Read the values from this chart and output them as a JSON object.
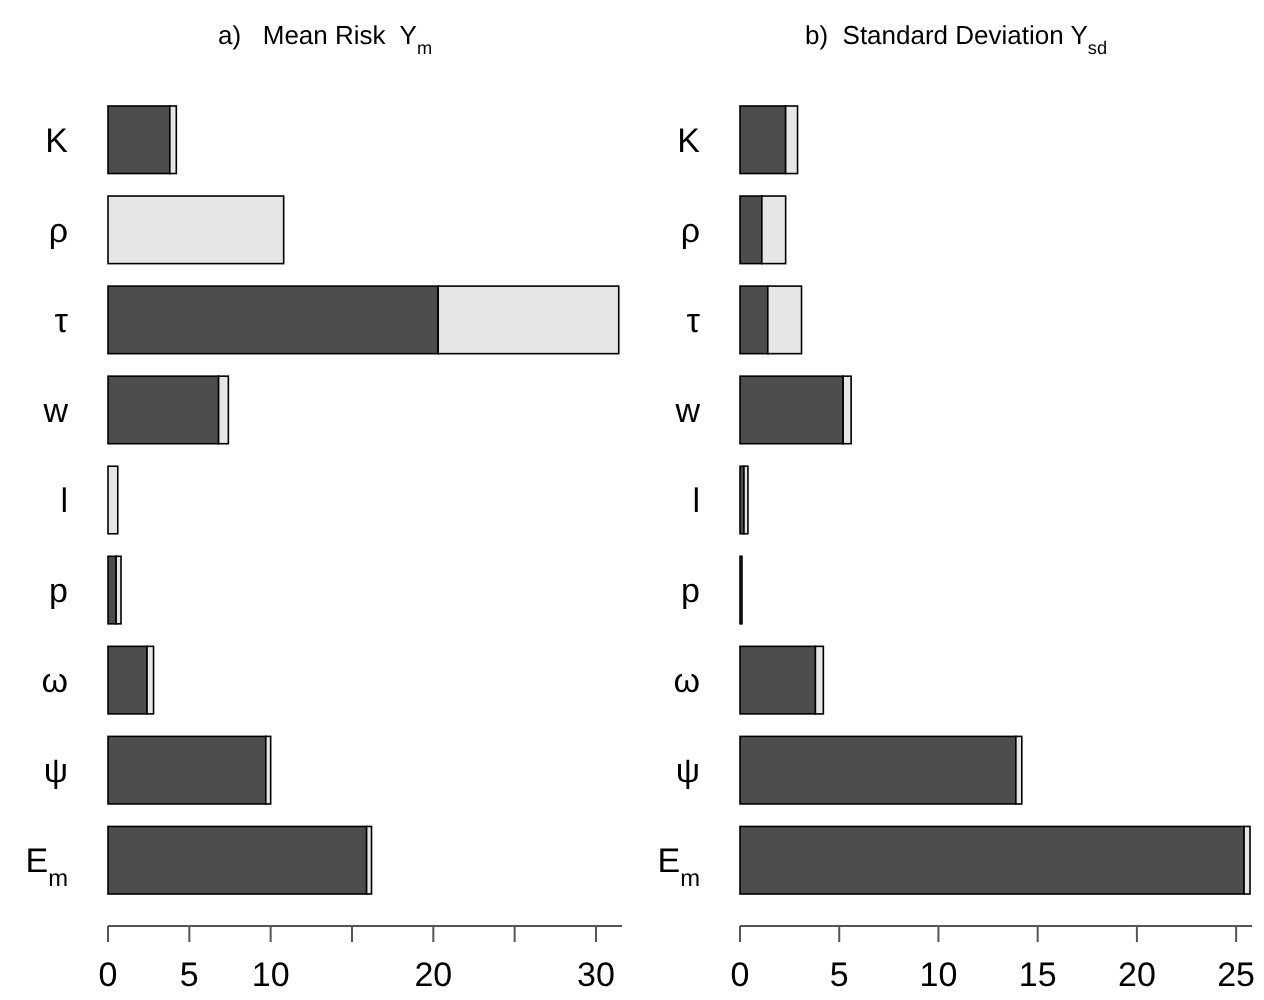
{
  "chart_data": [
    {
      "type": "bar",
      "orientation": "horizontal",
      "stacked": true,
      "title": "a)   Mean Risk  Y$_{m}$",
      "categories": [
        "K",
        "ρ",
        "τ",
        "w",
        "l",
        "p",
        "ω",
        "ψ",
        "E$_{m}$"
      ],
      "series": [
        {
          "color": "#4d4d4d",
          "values": [
            3.8,
            0,
            20.3,
            6.8,
            0,
            0.5,
            2.4,
            9.7,
            15.9
          ]
        },
        {
          "color": "#e6e6e6",
          "values": [
            0.4,
            10.8,
            11.1,
            0.6,
            0.6,
            0.3,
            0.4,
            0.3,
            0.3
          ]
        }
      ],
      "xlim": [
        0,
        31.6
      ],
      "xticks": [
        0,
        5,
        10,
        {
          "value": 15,
          "label": null
        },
        20,
        {
          "value": 25,
          "label": null
        },
        30
      ]
    },
    {
      "type": "bar",
      "orientation": "horizontal",
      "stacked": true,
      "title": "b)  Standard Deviation Y$_{sd}$",
      "categories": [
        "K",
        "ρ",
        "τ",
        "w",
        "l",
        "p",
        "ω",
        "ψ",
        "E$_{m}$"
      ],
      "series": [
        {
          "color": "#4d4d4d",
          "values": [
            2.3,
            1.1,
            1.4,
            5.2,
            0.2,
            0.1,
            3.8,
            13.9,
            25.4
          ]
        },
        {
          "color": "#e6e6e6",
          "values": [
            0.6,
            1.2,
            1.7,
            0.4,
            0.2,
            0,
            0.4,
            0.3,
            0.3
          ]
        }
      ],
      "xlim": [
        0,
        25.8
      ],
      "xticks": [
        0,
        5,
        10,
        15,
        20,
        25
      ]
    }
  ]
}
